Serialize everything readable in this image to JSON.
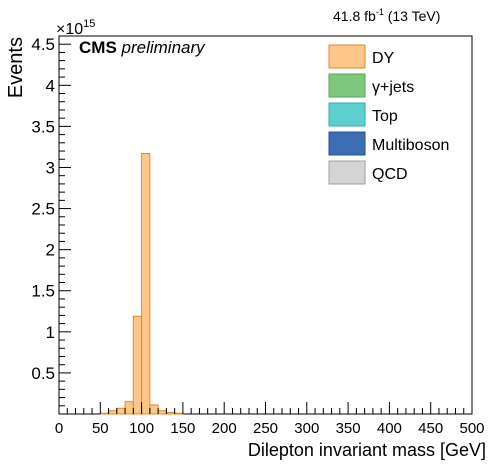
{
  "header": {
    "lumi_value": "41.8 fb",
    "lumi_exp": "-1",
    "lumi_energy": " (13 TeV)",
    "experiment": "CMS",
    "status": "preliminary",
    "y_exponent": "×10",
    "y_exponent_power": "15"
  },
  "chart_data": {
    "type": "bar",
    "title": "",
    "xlabel": "Dilepton invariant mass [GeV]",
    "ylabel": "Events",
    "xlim": [
      0,
      500
    ],
    "ylim": [
      0,
      4.6
    ],
    "y_scale_factor": "1e15",
    "bin_width": 10,
    "x_ticks": [
      0,
      50,
      100,
      150,
      200,
      250,
      300,
      350,
      400,
      450,
      500
    ],
    "x_tick_labels": [
      "0",
      "50",
      "100",
      "150",
      "200",
      "250",
      "300",
      "350",
      "400",
      "450",
      "500"
    ],
    "y_ticks": [
      0.5,
      1,
      1.5,
      2,
      2.5,
      3,
      3.5,
      4,
      4.5
    ],
    "y_tick_labels": [
      "0.5",
      "1",
      "1.5",
      "2",
      "2.5",
      "3",
      "3.5",
      "4",
      "4.5"
    ],
    "legend_position": "top-right",
    "legend": [
      {
        "name": "DY",
        "color": "#ffc68a",
        "edge": "#e08a30"
      },
      {
        "name": "γ+jets",
        "color": "#7ec87e",
        "edge": "#5aa35a"
      },
      {
        "name": "Top",
        "color": "#5ccfcf",
        "edge": "#3aa8a8"
      },
      {
        "name": "Multiboson",
        "color": "#3c6db5",
        "edge": "#2a4f8a"
      },
      {
        "name": "QCD",
        "color": "#d4d4d4",
        "edge": "#a0a0a0"
      }
    ],
    "series": [
      {
        "name": "DY",
        "bins_low_edge": [
          50,
          60,
          70,
          80,
          90,
          100,
          110,
          120,
          130,
          140
        ],
        "values": [
          0.01,
          0.04,
          0.07,
          0.15,
          1.19,
          3.17,
          0.11,
          0.04,
          0.02,
          0.01
        ]
      }
    ]
  }
}
